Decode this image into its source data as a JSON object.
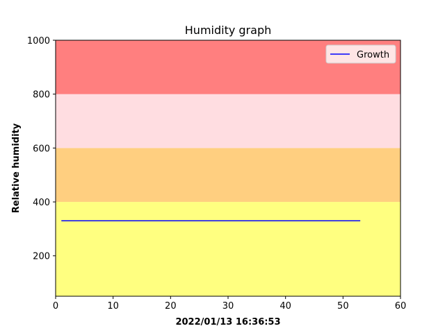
{
  "chart_data": {
    "type": "line",
    "title": "Humidity graph",
    "xlabel": "2022/01/13 16:36:53",
    "ylabel": "Relative humidity",
    "xlim": [
      0,
      60
    ],
    "ylim": [
      50,
      1000
    ],
    "x_ticks": [
      0,
      10,
      20,
      30,
      40,
      50,
      60
    ],
    "y_ticks": [
      200,
      400,
      600,
      800,
      1000
    ],
    "grid": false,
    "legend_position": "top-right",
    "bands": [
      {
        "from": 50,
        "to": 400,
        "color": "#ffff80"
      },
      {
        "from": 400,
        "to": 600,
        "color": "#ffcf80"
      },
      {
        "from": 600,
        "to": 800,
        "color": "#ffdde1"
      },
      {
        "from": 800,
        "to": 1000,
        "color": "#ff7f7f"
      }
    ],
    "series": [
      {
        "name": "Growth",
        "color": "#0000ff",
        "x": [
          1,
          53
        ],
        "y": [
          330,
          330
        ]
      }
    ]
  }
}
